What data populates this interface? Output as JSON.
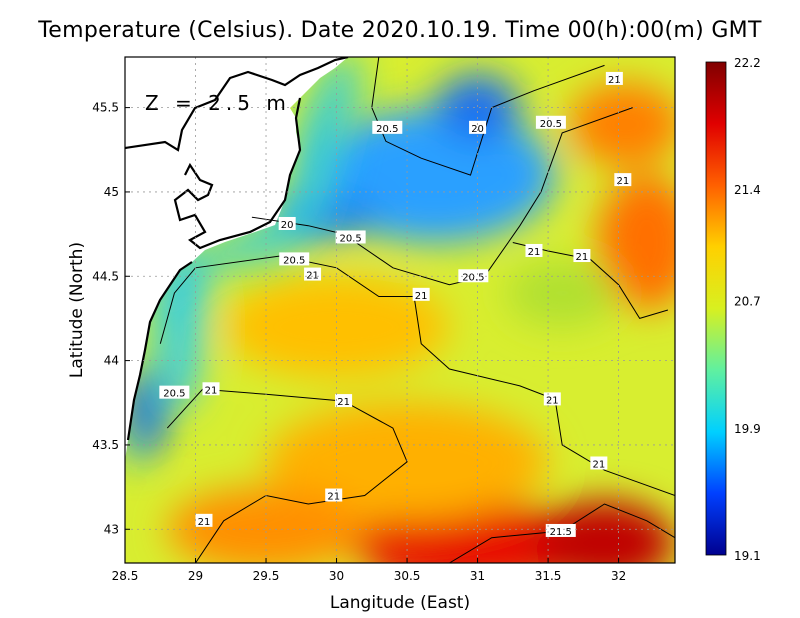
{
  "title": "Temperature (Celsius). Date 2020.10.19. Time 00(h):00(m)  GMT",
  "depth_label": "Z = 2.5 m",
  "x_axis": {
    "label": "Langitude (East)",
    "range": [
      28.5,
      32.4
    ],
    "ticks": [
      "28.5",
      "29",
      "29.5",
      "30",
      "30.5",
      "31",
      "31.5",
      "32"
    ]
  },
  "y_axis": {
    "label": "Latitude (North)",
    "range": [
      42.8,
      45.8
    ],
    "ticks": [
      "43",
      "43.5",
      "44",
      "44.5",
      "45",
      "45.5"
    ]
  },
  "colorbar": {
    "min": 19.1,
    "max": 22.2,
    "tick_labels": [
      "22.2",
      "21.4",
      "20.7",
      "19.9",
      "19.1"
    ],
    "colors": [
      "#00008f",
      "#0040ff",
      "#00d0ff",
      "#60f0a0",
      "#d8f020",
      "#ffd000",
      "#ff6000",
      "#e00000",
      "#800000"
    ]
  },
  "contour_labels": [
    {
      "text": "21",
      "lon": 31.97,
      "lat": 45.67
    },
    {
      "text": "20.5",
      "lon": 30.36,
      "lat": 45.38
    },
    {
      "text": "20",
      "lon": 31.0,
      "lat": 45.38
    },
    {
      "text": "20.5",
      "lon": 31.52,
      "lat": 45.41
    },
    {
      "text": "21",
      "lon": 32.03,
      "lat": 45.07
    },
    {
      "text": "20",
      "lon": 29.65,
      "lat": 44.81
    },
    {
      "text": "20.5",
      "lon": 30.1,
      "lat": 44.73
    },
    {
      "text": "21",
      "lon": 31.4,
      "lat": 44.65
    },
    {
      "text": "21",
      "lon": 31.74,
      "lat": 44.62
    },
    {
      "text": "20.5",
      "lon": 29.7,
      "lat": 44.6
    },
    {
      "text": "21",
      "lon": 29.83,
      "lat": 44.51
    },
    {
      "text": "20.5",
      "lon": 30.97,
      "lat": 44.5
    },
    {
      "text": "21",
      "lon": 30.6,
      "lat": 44.39
    },
    {
      "text": "20.5",
      "lon": 28.85,
      "lat": 43.81
    },
    {
      "text": "21",
      "lon": 29.11,
      "lat": 43.83
    },
    {
      "text": "21",
      "lon": 30.05,
      "lat": 43.76
    },
    {
      "text": "21",
      "lon": 31.53,
      "lat": 43.77
    },
    {
      "text": "21",
      "lon": 31.86,
      "lat": 43.39
    },
    {
      "text": "21",
      "lon": 29.98,
      "lat": 43.2
    },
    {
      "text": "21",
      "lon": 29.06,
      "lat": 43.05
    },
    {
      "text": "21.5",
      "lon": 31.59,
      "lat": 42.99
    }
  ],
  "field_blobs": [
    {
      "lon": 31.0,
      "lat": 42.9,
      "rx": 0.9,
      "ry": 0.25,
      "c": "#e81000"
    },
    {
      "lon": 31.9,
      "lat": 42.92,
      "rx": 0.5,
      "ry": 0.25,
      "c": "#c00000"
    },
    {
      "lon": 32.2,
      "lat": 44.7,
      "rx": 0.35,
      "ry": 0.4,
      "c": "#ff7000"
    },
    {
      "lon": 32.05,
      "lat": 45.4,
      "rx": 0.4,
      "ry": 0.25,
      "c": "#ff8000"
    },
    {
      "lon": 30.0,
      "lat": 44.2,
      "rx": 0.8,
      "ry": 0.3,
      "c": "#ffc000"
    },
    {
      "lon": 30.5,
      "lat": 43.4,
      "rx": 1.0,
      "ry": 0.35,
      "c": "#ffb000"
    },
    {
      "lon": 29.5,
      "lat": 43.0,
      "rx": 0.7,
      "ry": 0.25,
      "c": "#ff9000"
    },
    {
      "lon": 30.7,
      "lat": 45.1,
      "rx": 0.85,
      "ry": 0.4,
      "c": "#2aa0ff"
    },
    {
      "lon": 31.0,
      "lat": 45.5,
      "rx": 0.3,
      "ry": 0.2,
      "c": "#1a70f0"
    },
    {
      "lon": 29.95,
      "lat": 44.85,
      "rx": 0.35,
      "ry": 0.12,
      "c": "#1a80f0"
    },
    {
      "lon": 28.65,
      "lat": 43.7,
      "rx": 0.12,
      "ry": 0.25,
      "c": "#1040e0"
    },
    {
      "lon": 28.9,
      "lat": 44.2,
      "rx": 0.15,
      "ry": 0.5,
      "c": "#40d0e0"
    },
    {
      "lon": 31.6,
      "lat": 44.4,
      "rx": 0.4,
      "ry": 0.2,
      "c": "#b0e030"
    }
  ],
  "contour_lines": [
    [
      [
        30.3,
        45.8
      ],
      [
        30.25,
        45.5
      ],
      [
        30.35,
        45.3
      ],
      [
        30.6,
        45.2
      ],
      [
        30.95,
        45.1
      ],
      [
        31.1,
        45.5
      ],
      [
        31.4,
        45.6
      ],
      [
        31.9,
        45.75
      ]
    ],
    [
      [
        29.4,
        44.85
      ],
      [
        29.8,
        44.8
      ],
      [
        30.05,
        44.75
      ],
      [
        30.4,
        44.55
      ],
      [
        30.8,
        44.45
      ],
      [
        31.05,
        44.5
      ],
      [
        31.3,
        44.8
      ],
      [
        31.45,
        45.0
      ],
      [
        31.6,
        45.35
      ],
      [
        32.1,
        45.5
      ]
    ],
    [
      [
        28.75,
        44.1
      ],
      [
        28.85,
        44.4
      ],
      [
        29.0,
        44.55
      ],
      [
        29.6,
        44.62
      ],
      [
        30.0,
        44.55
      ],
      [
        30.3,
        44.38
      ],
      [
        30.55,
        44.38
      ],
      [
        30.6,
        44.1
      ],
      [
        30.8,
        43.95
      ],
      [
        31.3,
        43.85
      ],
      [
        31.55,
        43.77
      ],
      [
        31.6,
        43.5
      ],
      [
        31.9,
        43.35
      ],
      [
        32.4,
        43.2
      ]
    ],
    [
      [
        28.8,
        43.6
      ],
      [
        29.05,
        43.83
      ],
      [
        29.5,
        43.8
      ],
      [
        30.05,
        43.76
      ],
      [
        30.4,
        43.6
      ],
      [
        30.5,
        43.4
      ],
      [
        30.2,
        43.2
      ],
      [
        29.8,
        43.15
      ],
      [
        29.5,
        43.2
      ],
      [
        29.2,
        43.05
      ],
      [
        29.0,
        42.8
      ]
    ],
    [
      [
        30.8,
        42.8
      ],
      [
        31.1,
        42.95
      ],
      [
        31.6,
        42.99
      ],
      [
        31.9,
        43.15
      ],
      [
        32.2,
        43.05
      ],
      [
        32.4,
        42.95
      ]
    ],
    [
      [
        31.25,
        44.7
      ],
      [
        31.5,
        44.65
      ],
      [
        31.8,
        44.6
      ],
      [
        32.0,
        44.45
      ],
      [
        32.15,
        44.25
      ],
      [
        32.35,
        44.3
      ]
    ]
  ]
}
